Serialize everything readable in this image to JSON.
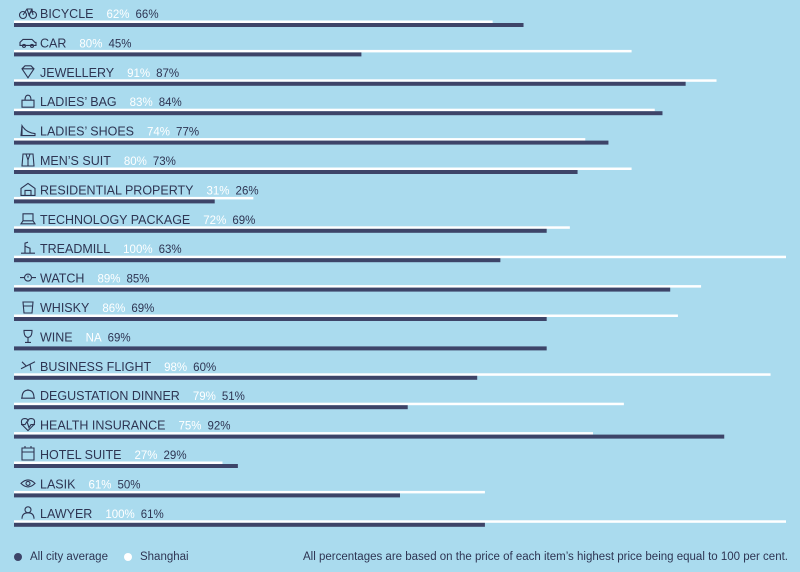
{
  "chart_data": {
    "type": "bar",
    "orientation": "horizontal",
    "categories": [
      "BICYCLE",
      "CAR",
      "JEWELLERY",
      "LADIES’ BAG",
      "LADIES’ SHOES",
      "MEN’S SUIT",
      "RESIDENTIAL PROPERTY",
      "TECHNOLOGY PACKAGE",
      "TREADMILL",
      "WATCH",
      "WHISKY",
      "WINE",
      "BUSINESS FLIGHT",
      "DEGUSTATION DINNER",
      "HEALTH INSURANCE",
      "HOTEL SUITE",
      "LASIK",
      "LAWYER"
    ],
    "icons": [
      "bicycle-icon",
      "car-icon",
      "diamond-icon",
      "handbag-icon",
      "high-heel-icon",
      "suit-icon",
      "house-icon",
      "laptop-icon",
      "treadmill-icon",
      "watch-icon",
      "whisky-icon",
      "wine-glass-icon",
      "airplane-icon",
      "dinner-plate-icon",
      "heartbeat-icon",
      "hotel-icon",
      "eye-icon",
      "lawyer-icon"
    ],
    "series": [
      {
        "name": "Shanghai",
        "color": "#ffffff",
        "values": [
          62,
          80,
          91,
          83,
          74,
          80,
          31,
          72,
          100,
          89,
          86,
          null,
          98,
          79,
          75,
          27,
          61,
          100
        ],
        "labels": [
          "62%",
          "80%",
          "91%",
          "83%",
          "74%",
          "80%",
          "31%",
          "72%",
          "100%",
          "89%",
          "86%",
          "NA",
          "98%",
          "79%",
          "75%",
          "27%",
          "61%",
          "100%"
        ]
      },
      {
        "name": "All city average",
        "color": "#3d4468",
        "values": [
          66,
          45,
          87,
          84,
          77,
          73,
          26,
          69,
          63,
          85,
          69,
          69,
          60,
          51,
          92,
          29,
          50,
          61
        ],
        "labels": [
          "66%",
          "45%",
          "87%",
          "84%",
          "77%",
          "73%",
          "26%",
          "69%",
          "63%",
          "85%",
          "69%",
          "69%",
          "60%",
          "51%",
          "92%",
          "29%",
          "50%",
          "61%"
        ]
      }
    ],
    "xlim": [
      0,
      100
    ]
  },
  "legend": {
    "avg_label": "All city average",
    "shanghai_label": "Shanghai"
  },
  "footnote": "All percentages are based on the price of each item’s highest price being equal to 100 per cent."
}
